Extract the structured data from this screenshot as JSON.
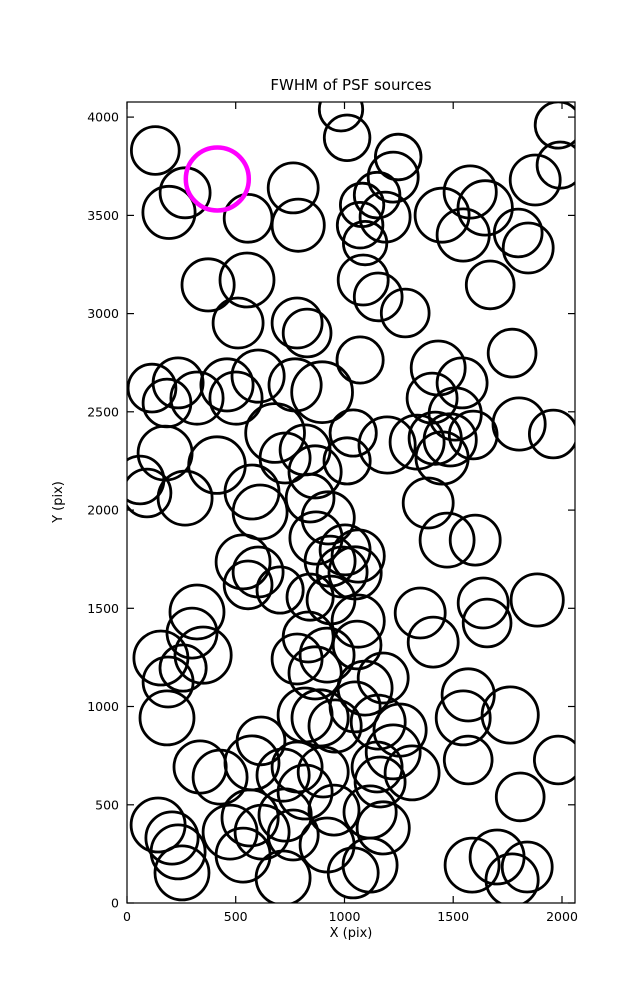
{
  "title": "FWHM of PSF sources",
  "x_axis": {
    "label": "X (pix)",
    "tick_labels": [
      "0",
      "500",
      "1000",
      "1500",
      "2000"
    ],
    "tick_values": [
      0,
      500,
      1000,
      1500,
      2000
    ],
    "range": [
      0,
      2060
    ]
  },
  "y_axis": {
    "label": "Y (pix)",
    "tick_labels": [
      "0",
      "500",
      "1000",
      "1500",
      "2000",
      "2500",
      "3000",
      "3500",
      "4000"
    ],
    "tick_values": [
      0,
      500,
      1000,
      1500,
      2000,
      2500,
      3000,
      3500,
      4000
    ],
    "range": [
      0,
      4077
    ]
  },
  "styles": {
    "circle_color": "#000000",
    "highlight_color": "#ff00ff",
    "frame_color": "#000000",
    "background": "#ffffff"
  },
  "chart_data": {
    "type": "scatter",
    "title": "FWHM of PSF sources",
    "xlabel": "X (pix)",
    "ylabel": "Y (pix)",
    "xlim": [
      0,
      2060
    ],
    "ylim": [
      0,
      4077
    ],
    "grid": false,
    "marker": "open-circle-fwhm-scaled",
    "highlight_point": {
      "x": 415,
      "y": 3685,
      "r": 145,
      "color": "#ff00ff"
    },
    "points": [
      [
        130,
        3830,
        110
      ],
      [
        267,
        3615,
        115
      ],
      [
        193,
        3515,
        120
      ],
      [
        557,
        3485,
        110
      ],
      [
        764,
        3640,
        115
      ],
      [
        787,
        3450,
        120
      ],
      [
        984,
        4040,
        100
      ],
      [
        1012,
        3895,
        105
      ],
      [
        1247,
        3797,
        105
      ],
      [
        1224,
        3695,
        115
      ],
      [
        1150,
        3603,
        105
      ],
      [
        1187,
        3491,
        115
      ],
      [
        1081,
        3553,
        100
      ],
      [
        1072,
        3450,
        105
      ],
      [
        1095,
        3359,
        100
      ],
      [
        1578,
        3619,
        120
      ],
      [
        1647,
        3538,
        125
      ],
      [
        1449,
        3501,
        124
      ],
      [
        1546,
        3400,
        120
      ],
      [
        1670,
        3146,
        110
      ],
      [
        1799,
        3410,
        110
      ],
      [
        1845,
        3334,
        115
      ],
      [
        1877,
        3680,
        115
      ],
      [
        1983,
        3960,
        106
      ],
      [
        1992,
        3756,
        106
      ],
      [
        373,
        3146,
        120
      ],
      [
        552,
        3171,
        124
      ],
      [
        511,
        2952,
        115
      ],
      [
        782,
        2952,
        115
      ],
      [
        828,
        2901,
        110
      ],
      [
        1086,
        3171,
        115
      ],
      [
        1155,
        3085,
        110
      ],
      [
        1279,
        3003,
        110
      ],
      [
        1771,
        2799,
        110
      ],
      [
        1072,
        2764,
        106
      ],
      [
        1431,
        2723,
        124
      ],
      [
        1541,
        2647,
        115
      ],
      [
        1403,
        2570,
        115
      ],
      [
        1509,
        2489,
        120
      ],
      [
        1385,
        2036,
        115
      ],
      [
        115,
        2621,
        110
      ],
      [
        235,
        2647,
        115
      ],
      [
        184,
        2545,
        110
      ],
      [
        322,
        2570,
        120
      ],
      [
        460,
        2637,
        120
      ],
      [
        501,
        2570,
        120
      ],
      [
        603,
        2682,
        120
      ],
      [
        773,
        2637,
        120
      ],
      [
        897,
        2600,
        140
      ],
      [
        681,
        2392,
        135
      ],
      [
        727,
        2265,
        115
      ],
      [
        819,
        2306,
        115
      ],
      [
        414,
        2229,
        130
      ],
      [
        175,
        2290,
        124
      ],
      [
        60,
        2153,
        110
      ],
      [
        92,
        2087,
        110
      ],
      [
        267,
        2061,
        124
      ],
      [
        575,
        2092,
        124
      ],
      [
        612,
        1990,
        124
      ],
      [
        842,
        2061,
        110
      ],
      [
        865,
        2194,
        120
      ],
      [
        925,
        1960,
        120
      ],
      [
        869,
        1858,
        120
      ],
      [
        1003,
        1797,
        115
      ],
      [
        1063,
        1766,
        120
      ],
      [
        934,
        1740,
        115
      ],
      [
        989,
        1685,
        115
      ],
      [
        1049,
        1680,
        120
      ],
      [
        534,
        1736,
        124
      ],
      [
        603,
        1685,
        115
      ],
      [
        704,
        1593,
        106
      ],
      [
        557,
        1619,
        110
      ],
      [
        842,
        1557,
        106
      ],
      [
        1012,
        2250,
        106
      ],
      [
        1040,
        2392,
        106
      ],
      [
        1196,
        2331,
        129
      ],
      [
        1334,
        2346,
        124
      ],
      [
        1417,
        2366,
        120
      ],
      [
        1486,
        2357,
        120
      ],
      [
        1449,
        2265,
        120
      ],
      [
        1592,
        2382,
        110
      ],
      [
        1803,
        2438,
        120
      ],
      [
        1960,
        2387,
        110
      ],
      [
        1472,
        1847,
        124
      ],
      [
        1601,
        1847,
        115
      ],
      [
        1063,
        1435,
        120
      ],
      [
        1058,
        1313,
        110
      ],
      [
        833,
        1354,
        115
      ],
      [
        920,
        1262,
        124
      ],
      [
        782,
        1242,
        115
      ],
      [
        865,
        1171,
        120
      ],
      [
        1095,
        1094,
        124
      ],
      [
        1178,
        1145,
        115
      ],
      [
        938,
        1542,
        110
      ],
      [
        322,
        1481,
        124
      ],
      [
        299,
        1374,
        115
      ],
      [
        350,
        1262,
        129
      ],
      [
        258,
        1196,
        106
      ],
      [
        189,
        1125,
        115
      ],
      [
        156,
        1247,
        124
      ],
      [
        184,
        942,
        124
      ],
      [
        1348,
        1476,
        115
      ],
      [
        1408,
        1328,
        115
      ],
      [
        1638,
        1527,
        115
      ],
      [
        1656,
        1425,
        110
      ],
      [
        1886,
        1542,
        120
      ],
      [
        1049,
        998,
        115
      ],
      [
        1155,
        921,
        124
      ],
      [
        1256,
        880,
        120
      ],
      [
        1569,
        1059,
        120
      ],
      [
        1546,
        942,
        124
      ],
      [
        1762,
        957,
        129
      ],
      [
        819,
        957,
        124
      ],
      [
        888,
        942,
        129
      ],
      [
        957,
        901,
        120
      ],
      [
        336,
        692,
        120
      ],
      [
        428,
        641,
        124
      ],
      [
        575,
        713,
        124
      ],
      [
        616,
        825,
        110
      ],
      [
        143,
        397,
        124
      ],
      [
        207,
        331,
        120
      ],
      [
        235,
        260,
        124
      ],
      [
        253,
        153,
        124
      ],
      [
        474,
        361,
        124
      ],
      [
        566,
        433,
        129
      ],
      [
        621,
        361,
        124
      ],
      [
        534,
        244,
        124
      ],
      [
        718,
        651,
        120
      ],
      [
        782,
        692,
        115
      ],
      [
        819,
        565,
        124
      ],
      [
        727,
        448,
        120
      ],
      [
        764,
        346,
        115
      ],
      [
        902,
        667,
        115
      ],
      [
        952,
        473,
        115
      ],
      [
        920,
        295,
        124
      ],
      [
        718,
        127,
        124
      ],
      [
        1224,
        769,
        124
      ],
      [
        1311,
        662,
        124
      ],
      [
        1150,
        692,
        115
      ],
      [
        1164,
        616,
        115
      ],
      [
        1569,
        728,
        110
      ],
      [
        1983,
        728,
        110
      ],
      [
        1808,
        540,
        110
      ],
      [
        1118,
        463,
        120
      ],
      [
        1178,
        382,
        120
      ],
      [
        1118,
        193,
        124
      ],
      [
        1040,
        153,
        115
      ],
      [
        1587,
        193,
        124
      ],
      [
        1702,
        234,
        124
      ],
      [
        1840,
        183,
        115
      ],
      [
        1771,
        117,
        120
      ]
    ]
  }
}
